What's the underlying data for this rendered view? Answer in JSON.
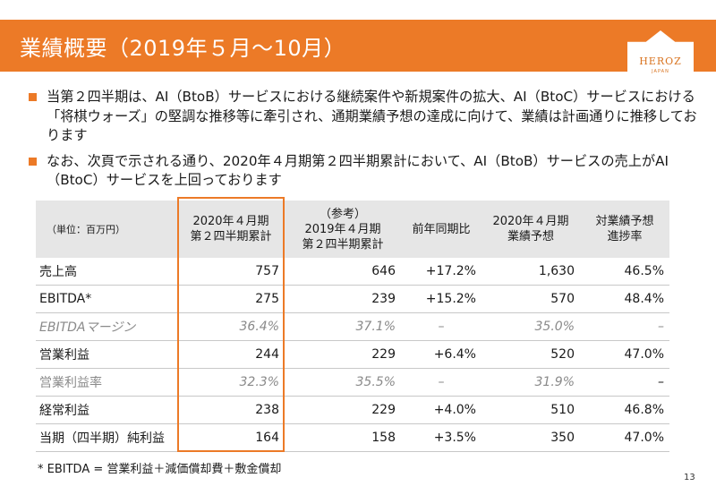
{
  "header": {
    "title": "業績概要（2019年５月～10月）"
  },
  "logo": {
    "text": "HEROZ",
    "sub": "JAPAN"
  },
  "bullets": [
    "当第２四半期は、AI（BtoB）サービスにおける継続案件や新規案件の拡大、AI（BtoC）サービスにおける「将棋ウォーズ」の堅調な推移等に牽引され、通期業績予想の達成に向けて、業績は計画通りに推移しております",
    "なお、次頁で示される通り、2020年４月期第２四半期累計において、AI（BtoB）サービスの売上がAI（BtoC）サービスを上回っております"
  ],
  "table": {
    "unit_label": "（単位：百万円）",
    "headers": [
      [
        "2020年４月期",
        "第２四半期累計"
      ],
      [
        "（参考）",
        "2019年４月期",
        "第２四半期累計"
      ],
      [
        "前年同期比"
      ],
      [
        "2020年４月期",
        "業績予想"
      ],
      [
        "対業績予想",
        "進捗率"
      ]
    ],
    "rows": [
      {
        "label": "売上高",
        "values": [
          "757",
          "646",
          "+17.2%",
          "1,630",
          "46.5%"
        ]
      },
      {
        "label": "EBITDA*",
        "values": [
          "275",
          "239",
          "+15.2%",
          "570",
          "48.4%"
        ]
      },
      {
        "label": "EBITDAマージン",
        "values": [
          "36.4%",
          "37.1%",
          "–",
          "35.0%",
          "–"
        ]
      },
      {
        "label": "営業利益",
        "values": [
          "244",
          "229",
          "+6.4%",
          "520",
          "47.0%"
        ]
      },
      {
        "label": "営業利益率",
        "values": [
          "32.3%",
          "35.5%",
          "–",
          "31.9%",
          "–"
        ]
      },
      {
        "label": "経常利益",
        "values": [
          "238",
          "229",
          "+4.0%",
          "510",
          "46.8%"
        ]
      },
      {
        "label": "当期（四半期）純利益",
        "values": [
          "164",
          "158",
          "+3.5%",
          "350",
          "47.0%"
        ]
      }
    ]
  },
  "footnote": "* EBITDA = 営業利益＋減価償却費＋敷金償却",
  "page_number": "13",
  "colors": {
    "accent": "#ec7a27",
    "header_bg": "#e6e6e6"
  }
}
